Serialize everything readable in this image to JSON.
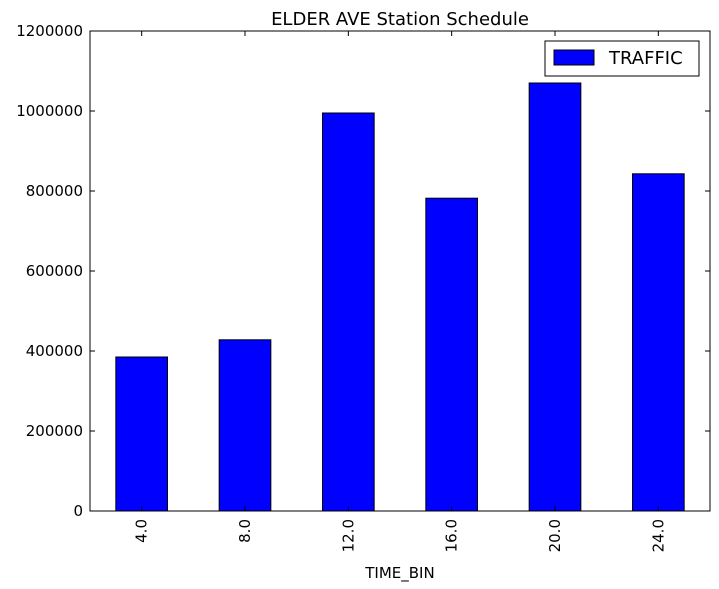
{
  "chart_data": {
    "type": "bar",
    "title": "ELDER AVE Station Schedule",
    "xlabel": "TIME_BIN",
    "ylabel": "",
    "categories": [
      "4.0",
      "8.0",
      "12.0",
      "16.0",
      "20.0",
      "24.0"
    ],
    "series": [
      {
        "name": "TRAFFIC",
        "color": "#0000ff",
        "values": [
          385000,
          428000,
          995000,
          782000,
          1070000,
          843000
        ]
      }
    ],
    "ylim": [
      0,
      1200000
    ],
    "yticks": [
      0,
      200000,
      400000,
      600000,
      800000,
      1000000,
      1200000
    ],
    "ytick_labels": [
      "0",
      "200000",
      "400000",
      "600000",
      "800000",
      "1000000",
      "1200000"
    ],
    "grid": false,
    "legend_position": "top-right"
  }
}
